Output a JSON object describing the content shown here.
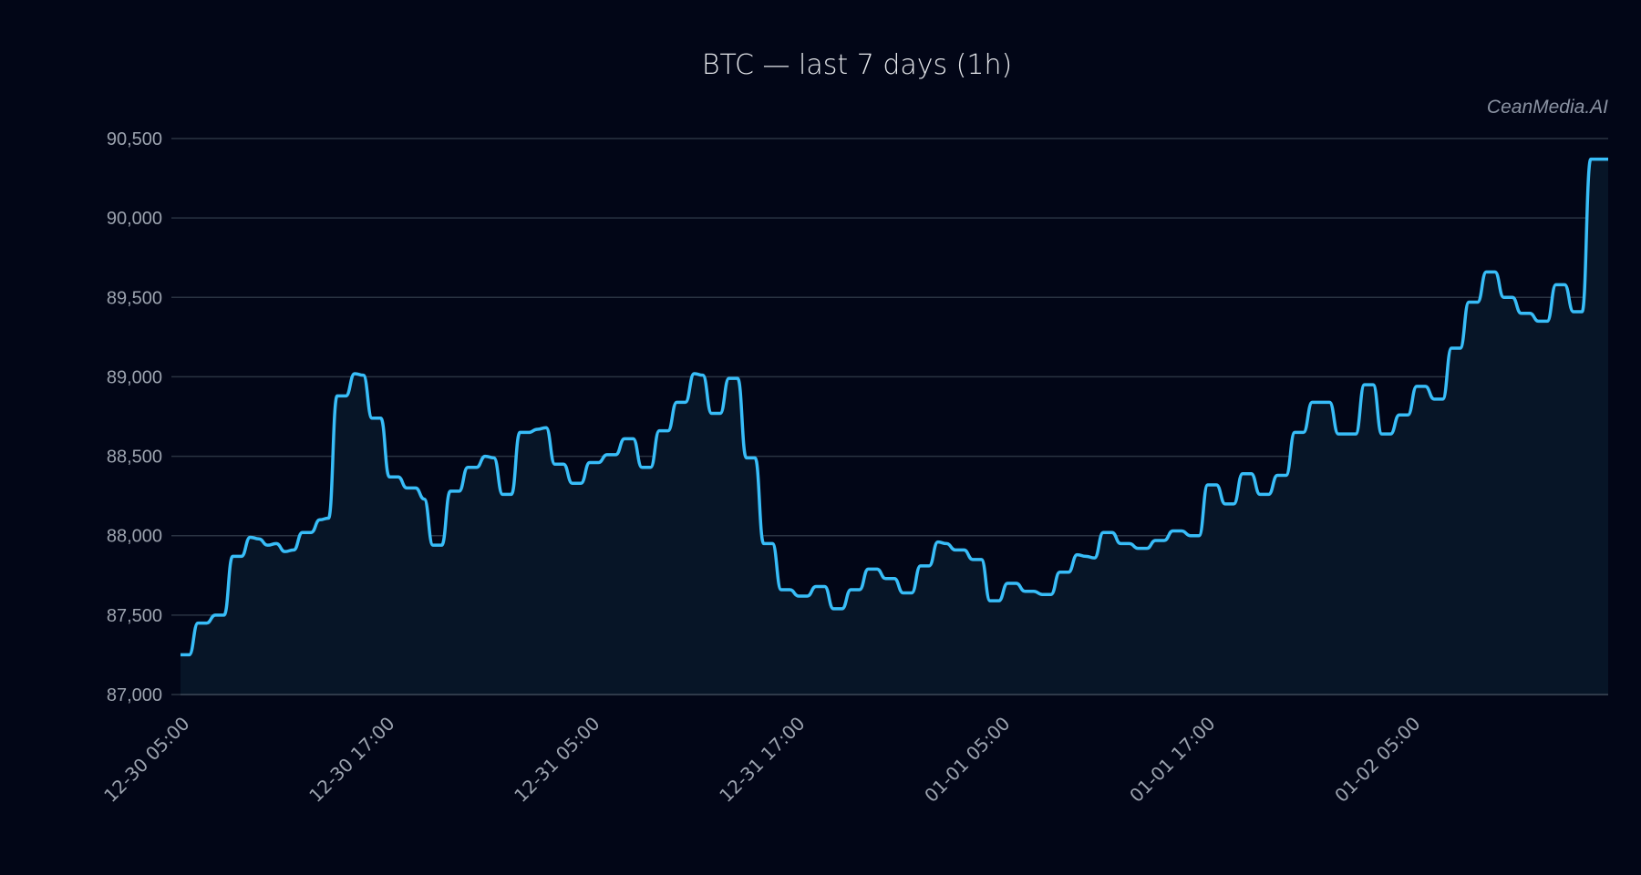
{
  "chart_data": {
    "type": "area",
    "title": "BTC — last 7 days (1h)",
    "watermark": "CeanMedia.AI",
    "xlabel": "",
    "ylabel": "",
    "ylim": [
      87000,
      90500
    ],
    "yticks": [
      87000,
      87500,
      88000,
      88500,
      89000,
      89500,
      90000,
      90500
    ],
    "ytick_labels": [
      "87,000",
      "87,500",
      "88,000",
      "88,500",
      "89,000",
      "89,500",
      "90,000",
      "90,500"
    ],
    "xtick_labels": [
      "12-30 05:00",
      "12-30 17:00",
      "12-31 05:00",
      "12-31 17:00",
      "01-01 05:00",
      "01-01 17:00",
      "01-02 05:00"
    ],
    "xtick_hours": [
      0,
      12,
      24,
      36,
      48,
      60,
      72
    ],
    "grid": true,
    "legend": null,
    "colors": {
      "line": "#38bdf8",
      "fill": "#071527",
      "grid": "#2a3342",
      "background": "#020617",
      "tick_text": "#9ca3af"
    },
    "series": [
      {
        "name": "BTC",
        "x_start": "12-30 05:00",
        "interval": "1h",
        "values": [
          87250,
          87250,
          87450,
          87450,
          87500,
          87500,
          87870,
          87870,
          87990,
          87980,
          87940,
          87950,
          87900,
          87910,
          88020,
          88020,
          88100,
          88110,
          88880,
          88880,
          89020,
          89010,
          88740,
          88740,
          88370,
          88370,
          88300,
          88300,
          88230,
          87940,
          87940,
          88280,
          88280,
          88430,
          88430,
          88500,
          88490,
          88260,
          88260,
          88650,
          88650,
          88670,
          88680,
          88450,
          88450,
          88330,
          88330,
          88460,
          88460,
          88510,
          88510,
          88610,
          88610,
          88430,
          88430,
          88660,
          88660,
          88840,
          88840,
          89020,
          89010,
          88770,
          88770,
          88990,
          88990,
          88490,
          88490,
          87950,
          87950,
          87660,
          87660,
          87620,
          87620,
          87680,
          87680,
          87540,
          87540,
          87660,
          87660,
          87790,
          87790,
          87730,
          87730,
          87640
        ]
      }
    ]
  }
}
